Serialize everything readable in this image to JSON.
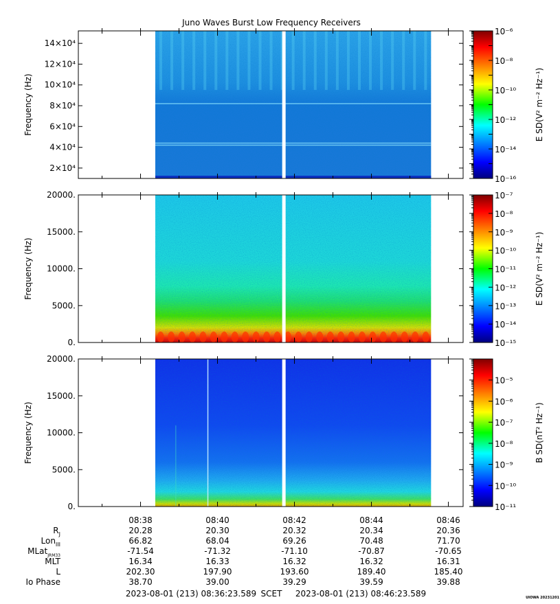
{
  "title": "Juno Waves Burst Low Frequency Receivers",
  "credit": "UIOWA 20231201",
  "time_range_label": {
    "start": "2023-08-01 (213) 08:36:23.589",
    "frame": "SCET",
    "end": "2023-08-01 (213) 08:46:23.589"
  },
  "colors": {
    "background": "#ffffff",
    "gap": "#ffffff",
    "axis": "#000000"
  },
  "chart_data": [
    {
      "type": "heatmap",
      "panel": "top",
      "ylabel": "Frequency (Hz)",
      "ylim": [
        10000,
        152000
      ],
      "yticks": [
        20000,
        40000,
        60000,
        80000,
        100000,
        120000,
        140000
      ],
      "ytick_labels": [
        "2×10⁴",
        "4×10⁴",
        "6×10⁴",
        "8×10⁴",
        "10×10⁴",
        "12×10⁴",
        "14×10⁴"
      ],
      "data_time_range": [
        "08:38:23",
        "08:45:33"
      ],
      "gap_time": "08:41:43",
      "colorbar": {
        "label": "E SD(V² m⁻² Hz⁻¹)",
        "scale": "log",
        "range": [
          1e-16,
          1e-06
        ],
        "tick_labels": [
          "10⁻⁶",
          "10⁻⁸",
          "10⁻¹⁰",
          "10⁻¹²",
          "10⁻¹⁴",
          "10⁻¹⁶"
        ]
      }
    },
    {
      "type": "heatmap",
      "panel": "middle",
      "ylabel": "Frequency (Hz)",
      "ylim": [
        0,
        20000
      ],
      "yticks": [
        0,
        5000,
        10000,
        15000,
        20000
      ],
      "ytick_labels": [
        "0.",
        "5000.",
        "10000.",
        "15000.",
        "20000."
      ],
      "data_time_range": [
        "08:38:23",
        "08:45:33"
      ],
      "gap_time": "08:41:43",
      "colorbar": {
        "label": "E SD(V² m⁻² Hz⁻¹)",
        "scale": "log",
        "range": [
          1e-15,
          1e-07
        ],
        "tick_labels": [
          "10⁻⁷",
          "10⁻⁸",
          "10⁻⁹",
          "10⁻¹⁰",
          "10⁻¹¹",
          "10⁻¹²",
          "10⁻¹³",
          "10⁻¹⁴",
          "10⁻¹⁵"
        ]
      }
    },
    {
      "type": "heatmap",
      "panel": "bottom",
      "ylabel": "Frequency (Hz)",
      "ylim": [
        0,
        20000
      ],
      "yticks": [
        0,
        5000,
        10000,
        15000,
        20000
      ],
      "ytick_labels": [
        "0.",
        "5000.",
        "10000.",
        "15000.",
        "20000."
      ],
      "data_time_range": [
        "08:38:23",
        "08:45:33"
      ],
      "gap_time": "08:41:43",
      "colorbar": {
        "label": "B SD(nT² Hz⁻¹)",
        "scale": "log",
        "range": [
          1e-11,
          0.0001
        ],
        "tick_labels": [
          "10⁻⁵",
          "10⁻⁶",
          "10⁻⁷",
          "10⁻⁸",
          "10⁻⁹",
          "10⁻¹⁰",
          "10⁻¹¹"
        ]
      }
    }
  ],
  "time_axis": {
    "range": [
      "08:36:23",
      "08:46:23"
    ],
    "major_ticks": [
      "08:38",
      "08:40",
      "08:42",
      "08:44",
      "08:46"
    ]
  },
  "ephemeris": {
    "rows": [
      {
        "label": "R",
        "sub": "J",
        "values": [
          "20.28",
          "20.30",
          "20.32",
          "20.34",
          "20.36"
        ]
      },
      {
        "label": "Lon",
        "sub": "III",
        "values": [
          "66.82",
          "68.04",
          "69.26",
          "70.48",
          "71.70"
        ]
      },
      {
        "label": "MLat",
        "sub": "JRM33",
        "values": [
          "-71.54",
          "-71.32",
          "-71.10",
          "-70.87",
          "-70.65"
        ]
      },
      {
        "label": "MLT",
        "sub": "",
        "values": [
          "16.34",
          "16.33",
          "16.32",
          "16.32",
          "16.31"
        ]
      },
      {
        "label": "L",
        "sub": "",
        "values": [
          "202.30",
          "197.90",
          "193.60",
          "189.40",
          "185.40"
        ]
      },
      {
        "label": "Io Phase",
        "sub": "",
        "values": [
          "38.70",
          "39.00",
          "39.29",
          "39.59",
          "39.88"
        ]
      }
    ]
  }
}
